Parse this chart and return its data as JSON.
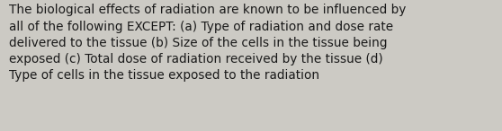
{
  "text": "The biological effects of radiation are known to be influenced by\nall of the following EXCEPT: (a) Type of radiation and dose rate\ndelivered to the tissue (b) Size of the cells in the tissue being\nexposed (c) Total dose of radiation received by the tissue (d)\nType of cells in the tissue exposed to the radiation",
  "background_color": "#cccac4",
  "text_color": "#1a1a1a",
  "font_size": 9.8,
  "fig_width": 5.58,
  "fig_height": 1.46,
  "dpi": 100
}
